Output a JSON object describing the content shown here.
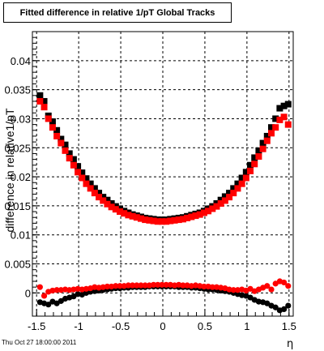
{
  "title": "Fitted difference in relative 1/pT  Global Tracks",
  "footer": "Thu Oct 27 18:00:00 2011",
  "chart_data": {
    "type": "scatter",
    "title": "Fitted difference in relative 1/pT  Global Tracks",
    "xlabel": "η",
    "ylabel": "difference in relative1/pT",
    "xlim": [
      -1.55,
      1.55
    ],
    "ylim": [
      -0.004,
      0.045
    ],
    "xticks": [
      -1.5,
      -1,
      -0.5,
      0,
      0.5,
      1,
      1.5
    ],
    "xtick_labels": [
      "-1.5",
      "-1",
      "-0.5",
      "0",
      "0.5",
      "1",
      "1.5"
    ],
    "yticks": [
      0,
      0.005,
      0.01,
      0.015,
      0.02,
      0.025,
      0.03,
      0.035,
      0.04
    ],
    "ytick_labels": [
      "0",
      "0.005",
      "0.01",
      "0.015",
      "0.02",
      "0.025",
      "0.03",
      "0.035",
      "0.04"
    ],
    "grid": true,
    "marker_colors": {
      "black": "#000000",
      "red": "#ff0000"
    },
    "series": [
      {
        "color": "#000000",
        "marker": "square",
        "x": [
          -1.46,
          -1.41,
          -1.36,
          -1.31,
          -1.26,
          -1.21,
          -1.16,
          -1.11,
          -1.06,
          -1.01,
          -0.96,
          -0.91,
          -0.86,
          -0.81,
          -0.76,
          -0.71,
          -0.66,
          -0.61,
          -0.56,
          -0.51,
          -0.46,
          -0.41,
          -0.36,
          -0.31,
          -0.26,
          -0.21,
          -0.16,
          -0.11,
          -0.06,
          -0.01,
          0.04,
          0.09,
          0.14,
          0.19,
          0.24,
          0.29,
          0.34,
          0.39,
          0.44,
          0.49,
          0.54,
          0.59,
          0.64,
          0.69,
          0.74,
          0.79,
          0.84,
          0.89,
          0.94,
          0.99,
          1.04,
          1.09,
          1.14,
          1.19,
          1.24,
          1.29,
          1.34,
          1.39,
          1.44,
          1.49
        ],
        "y": [
          0.034,
          0.033,
          0.0305,
          0.0295,
          0.028,
          0.0265,
          0.0255,
          0.024,
          0.023,
          0.0218,
          0.0207,
          0.0197,
          0.0188,
          0.018,
          0.0172,
          0.0165,
          0.016,
          0.0154,
          0.0149,
          0.0145,
          0.0141,
          0.0138,
          0.0135,
          0.0133,
          0.0131,
          0.0129,
          0.0128,
          0.0127,
          0.0126,
          0.0126,
          0.0126,
          0.0127,
          0.0128,
          0.0129,
          0.013,
          0.0132,
          0.0134,
          0.0136,
          0.0138,
          0.0141,
          0.0145,
          0.0149,
          0.0154,
          0.016,
          0.0166,
          0.0172,
          0.018,
          0.0188,
          0.0198,
          0.0208,
          0.022,
          0.0233,
          0.0245,
          0.0258,
          0.027,
          0.0285,
          0.03,
          0.0318,
          0.0322,
          0.0325
        ]
      },
      {
        "color": "#ff0000",
        "marker": "square",
        "x": [
          -1.46,
          -1.41,
          -1.36,
          -1.31,
          -1.26,
          -1.21,
          -1.16,
          -1.11,
          -1.06,
          -1.01,
          -0.96,
          -0.91,
          -0.86,
          -0.81,
          -0.76,
          -0.71,
          -0.66,
          -0.61,
          -0.56,
          -0.51,
          -0.46,
          -0.41,
          -0.36,
          -0.31,
          -0.26,
          -0.21,
          -0.16,
          -0.11,
          -0.06,
          -0.01,
          0.04,
          0.09,
          0.14,
          0.19,
          0.24,
          0.29,
          0.34,
          0.39,
          0.44,
          0.49,
          0.54,
          0.59,
          0.64,
          0.69,
          0.74,
          0.79,
          0.84,
          0.89,
          0.94,
          0.99,
          1.04,
          1.09,
          1.14,
          1.19,
          1.24,
          1.29,
          1.34,
          1.39,
          1.44,
          1.49
        ],
        "y": [
          0.033,
          0.032,
          0.03,
          0.0285,
          0.027,
          0.0258,
          0.0245,
          0.0232,
          0.022,
          0.0208,
          0.0198,
          0.0188,
          0.018,
          0.0172,
          0.0165,
          0.0159,
          0.0153,
          0.0148,
          0.0144,
          0.014,
          0.0137,
          0.0134,
          0.0132,
          0.013,
          0.0128,
          0.0126,
          0.0125,
          0.0124,
          0.0123,
          0.0123,
          0.0123,
          0.0124,
          0.0125,
          0.0126,
          0.0127,
          0.0129,
          0.0131,
          0.0133,
          0.0135,
          0.0138,
          0.0141,
          0.0145,
          0.0149,
          0.0154,
          0.0159,
          0.0165,
          0.0172,
          0.018,
          0.0188,
          0.0198,
          0.021,
          0.0222,
          0.0235,
          0.0248,
          0.0262,
          0.0275,
          0.0285,
          0.0298,
          0.0303,
          0.029
        ]
      },
      {
        "color": "#000000",
        "marker": "circle",
        "x": [
          -1.46,
          -1.41,
          -1.36,
          -1.31,
          -1.26,
          -1.21,
          -1.16,
          -1.11,
          -1.06,
          -1.01,
          -0.96,
          -0.91,
          -0.86,
          -0.81,
          -0.76,
          -0.71,
          -0.66,
          -0.61,
          -0.56,
          -0.51,
          -0.46,
          -0.41,
          -0.36,
          -0.31,
          -0.26,
          -0.21,
          -0.16,
          -0.11,
          -0.06,
          -0.01,
          0.04,
          0.09,
          0.14,
          0.19,
          0.24,
          0.29,
          0.34,
          0.39,
          0.44,
          0.49,
          0.54,
          0.59,
          0.64,
          0.69,
          0.74,
          0.79,
          0.84,
          0.89,
          0.94,
          0.99,
          1.04,
          1.09,
          1.14,
          1.19,
          1.24,
          1.29,
          1.34,
          1.39,
          1.44,
          1.49
        ],
        "y": [
          -0.0016,
          -0.0018,
          -0.002,
          -0.0015,
          -0.0018,
          -0.0014,
          -0.001,
          -0.0008,
          -0.0006,
          -0.0002,
          -0.0003,
          0.0,
          0.0002,
          0.0003,
          0.0004,
          0.0005,
          0.0006,
          0.0007,
          0.0008,
          0.0008,
          0.0009,
          0.0009,
          0.001,
          0.001,
          0.001,
          0.001,
          0.0011,
          0.0011,
          0.0011,
          0.0011,
          0.0011,
          0.0011,
          0.0011,
          0.001,
          0.001,
          0.001,
          0.0009,
          0.0009,
          0.0008,
          0.0007,
          0.0006,
          0.0006,
          0.0005,
          0.0004,
          0.0003,
          0.0002,
          0.0,
          -0.0002,
          -0.0004,
          -0.0005,
          -0.0008,
          -0.0012,
          -0.0015,
          -0.0016,
          -0.0018,
          -0.0022,
          -0.0025,
          -0.003,
          -0.0028,
          -0.0022
        ]
      },
      {
        "color": "#ff0000",
        "marker": "circle",
        "x": [
          -1.46,
          -1.41,
          -1.36,
          -1.31,
          -1.26,
          -1.21,
          -1.16,
          -1.11,
          -1.06,
          -1.01,
          -0.96,
          -0.91,
          -0.86,
          -0.81,
          -0.76,
          -0.71,
          -0.66,
          -0.61,
          -0.56,
          -0.51,
          -0.46,
          -0.41,
          -0.36,
          -0.31,
          -0.26,
          -0.21,
          -0.16,
          -0.11,
          -0.06,
          -0.01,
          0.04,
          0.09,
          0.14,
          0.19,
          0.24,
          0.29,
          0.34,
          0.39,
          0.44,
          0.49,
          0.54,
          0.59,
          0.64,
          0.69,
          0.74,
          0.79,
          0.84,
          0.89,
          0.94,
          0.99,
          1.04,
          1.09,
          1.14,
          1.19,
          1.24,
          1.29,
          1.34,
          1.39,
          1.44,
          1.49
        ],
        "y": [
          0.001,
          -0.0005,
          0.0002,
          0.0004,
          0.0005,
          0.0005,
          0.0006,
          0.0005,
          0.0006,
          0.0007,
          0.0006,
          0.0007,
          0.0008,
          0.001,
          0.0009,
          0.001,
          0.0011,
          0.0011,
          0.0012,
          0.0012,
          0.0012,
          0.0013,
          0.0013,
          0.0013,
          0.0013,
          0.0013,
          0.0013,
          0.0014,
          0.0014,
          0.0014,
          0.0014,
          0.0014,
          0.0013,
          0.0014,
          0.0013,
          0.0013,
          0.0012,
          0.0013,
          0.0012,
          0.0011,
          0.0011,
          0.001,
          0.001,
          0.0009,
          0.0008,
          0.0006,
          0.0005,
          0.0005,
          0.0006,
          0.0004,
          0.0007,
          0.0003,
          0.0006,
          0.0009,
          0.0012,
          0.0006,
          0.0016,
          0.002,
          0.0018,
          0.0012
        ]
      }
    ]
  }
}
